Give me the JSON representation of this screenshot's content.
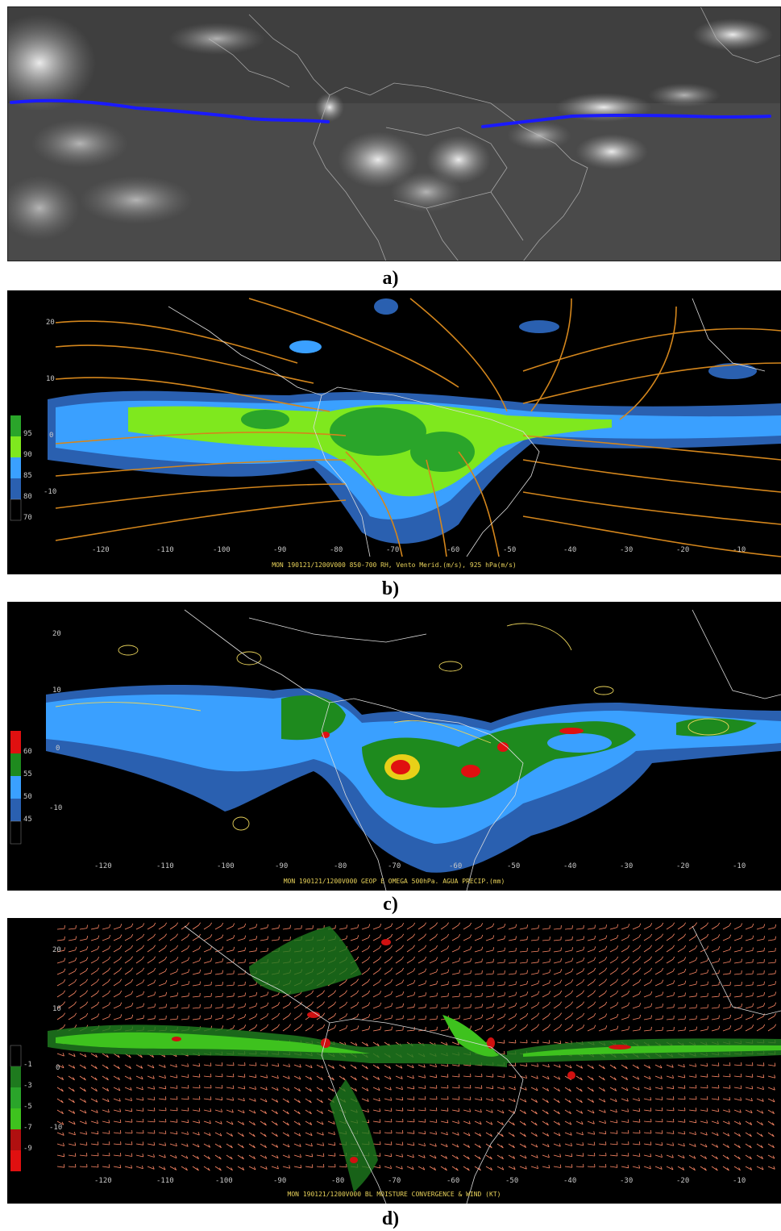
{
  "panels": [
    {
      "caption": "a)"
    },
    {
      "caption": "b)",
      "footer": "MON 190121/1200V000 850-700 RH, Vento Merid.(m/s), 925 hPa(m/s)",
      "legend": [
        "95",
        "90",
        "85",
        "80",
        "70"
      ],
      "lon_ticks": [
        "-120",
        "-110",
        "-100",
        "-90",
        "-80",
        "-70",
        "-60",
        "-50",
        "-40",
        "-30",
        "-20",
        "-10"
      ],
      "lat_ticks": [
        "20",
        "10",
        "0",
        "-10"
      ]
    },
    {
      "caption": "c)",
      "footer": "MON 190121/1200V000 GEOP E OMEGA 500hPa. AGUA PRECIP.(mm)",
      "legend": [
        "60",
        "55",
        "50",
        "45"
      ],
      "lon_ticks": [
        "-120",
        "-110",
        "-100",
        "-90",
        "-80",
        "-70",
        "-60",
        "-50",
        "-40",
        "-30",
        "-20",
        "-10"
      ],
      "lat_ticks": [
        "20",
        "10",
        "0",
        "-10"
      ]
    },
    {
      "caption": "d)",
      "footer": "MON 190121/1200V000 BL MOISTURE CONVERGENCE & WIND (KT)",
      "legend": [
        "-1",
        "-3",
        "-5",
        "-7",
        "-9"
      ],
      "lon_ticks": [
        "-120",
        "-110",
        "-100",
        "-90",
        "-80",
        "-70",
        "-60",
        "-50",
        "-40",
        "-30",
        "-20",
        "-10"
      ],
      "lat_ticks": [
        "20",
        "10",
        "0",
        "-10"
      ]
    }
  ],
  "colors": {
    "itcz_line": "#1a1aff",
    "rh_95": "#2aa52a",
    "rh_90": "#7fe81e",
    "rh_85": "#3aa0ff",
    "rh_80": "#2a60b0",
    "pw_60": "#e01010",
    "pw_55": "#1e8a1e",
    "pw_50": "#3aa0ff",
    "pw_45": "#2a60b0",
    "conv_strong": "#d01010",
    "conv_mid": "#3ec21e",
    "conv_weak": "#1e7a1e",
    "streamline": "#d4861c",
    "coast": "#dddddd",
    "wind_barb": "#ff8866"
  }
}
